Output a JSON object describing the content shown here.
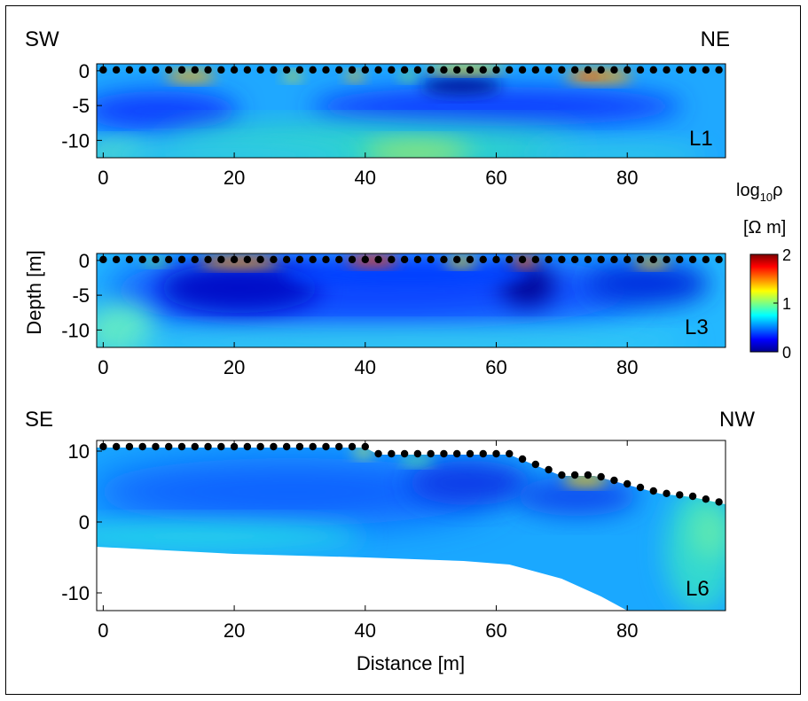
{
  "chart_data": [
    {
      "type": "heatmap",
      "panel_label": "L1",
      "corner_labels": [
        "SW",
        "NE"
      ],
      "xticks": [
        0,
        20,
        40,
        60,
        80
      ],
      "yticks": [
        0,
        -5,
        -10
      ],
      "xlim": [
        -1,
        95
      ],
      "ylim": [
        -12.5,
        1
      ],
      "surface": [
        [
          -1,
          0
        ],
        [
          95,
          0
        ]
      ],
      "electrodes": {
        "x_start": 0,
        "x_end": 94,
        "spacing": 2
      },
      "anomalies": [
        {
          "x": 14,
          "depth": -1.5,
          "value": 1.8
        },
        {
          "x": 40,
          "depth": -1.5,
          "value": 1.6
        },
        {
          "x": 55,
          "depth": -0.3,
          "value": 1.7
        },
        {
          "x": 75,
          "depth": -1.5,
          "value": 1.9
        },
        {
          "x": 55,
          "depth": -3.0,
          "value": 0.05
        },
        {
          "x": 75,
          "depth": -5.0,
          "value": 0.2
        },
        {
          "x": 48,
          "depth": -11.0,
          "value": 1.3
        }
      ]
    },
    {
      "type": "heatmap",
      "panel_label": "L3",
      "xticks": [
        0,
        20,
        40,
        60,
        80
      ],
      "yticks": [
        0,
        -5,
        -10
      ],
      "xlim": [
        -1,
        95
      ],
      "ylim": [
        -12.5,
        1
      ],
      "surface": [
        [
          -1,
          0
        ],
        [
          95,
          0
        ]
      ],
      "electrodes": {
        "x_start": 0,
        "x_end": 94,
        "spacing": 2
      },
      "anomalies": [
        {
          "x": 20,
          "depth": -0.8,
          "value": 1.7
        },
        {
          "x": 40,
          "depth": -0.8,
          "value": 1.9
        },
        {
          "x": 65,
          "depth": -1.0,
          "value": 1.9
        },
        {
          "x": 83,
          "depth": -1.0,
          "value": 1.6
        },
        {
          "x": 24,
          "depth": -4.5,
          "value": 0.0
        },
        {
          "x": 65,
          "depth": -4.5,
          "value": 0.0
        }
      ]
    },
    {
      "type": "heatmap",
      "panel_label": "L6",
      "corner_labels": [
        "SE",
        "NW"
      ],
      "xticks": [
        0,
        20,
        40,
        60,
        80
      ],
      "yticks": [
        10,
        0,
        -10
      ],
      "xlim": [
        -1,
        95
      ],
      "ylim": [
        -12.5,
        11.5
      ],
      "xlabel": "Distance [m]",
      "surface": [
        [
          -1,
          10.5
        ],
        [
          40,
          10.5
        ],
        [
          42,
          9.5
        ],
        [
          62,
          9.5
        ],
        [
          70,
          6.5
        ],
        [
          75,
          6.5
        ],
        [
          85,
          4
        ],
        [
          90,
          3.5
        ],
        [
          95,
          2.5
        ]
      ],
      "electrodes": {
        "x_start": 0,
        "x_end": 94,
        "spacing": 2
      },
      "unresolved_boundary": [
        [
          -1,
          -3.5
        ],
        [
          20,
          -4.5
        ],
        [
          40,
          -5
        ],
        [
          55,
          -5.5
        ],
        [
          62,
          -6
        ],
        [
          70,
          -8
        ],
        [
          76,
          -10.5
        ],
        [
          80,
          -12.5
        ]
      ],
      "anomalies": [
        {
          "x": 73,
          "depth": 6,
          "value": 1.8
        },
        {
          "x": 40,
          "depth": 9.5,
          "value": 1.2
        }
      ]
    }
  ],
  "shared_ylabel": "Depth [m]",
  "colorbar": {
    "title_main": "log",
    "title_sub": "10",
    "title_sym": "ρ",
    "unit": "[Ω m]",
    "ticks": [
      2,
      1,
      0
    ],
    "range": [
      0,
      2
    ],
    "colormap": [
      "#00008f",
      "#0000ff",
      "#0080ff",
      "#00ffff",
      "#80ff80",
      "#ffff00",
      "#ff8000",
      "#ff0000",
      "#800000"
    ]
  }
}
